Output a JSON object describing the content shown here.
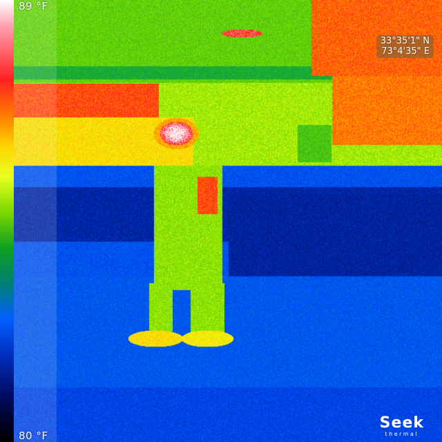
{
  "scale": {
    "max_label": "89 °F",
    "min_label": "80 °F"
  },
  "gps": {
    "latitude": "33°35'1\" N",
    "longitude": "73°4'35\" E"
  },
  "brand": {
    "name": "Seek",
    "sub": "thermal"
  },
  "palette": {
    "hottest": "#ffffff",
    "hot": "#ff2020",
    "warm": "#ffd400",
    "mid": "#20b020",
    "cool": "#0050ff",
    "cold": "#001060"
  }
}
